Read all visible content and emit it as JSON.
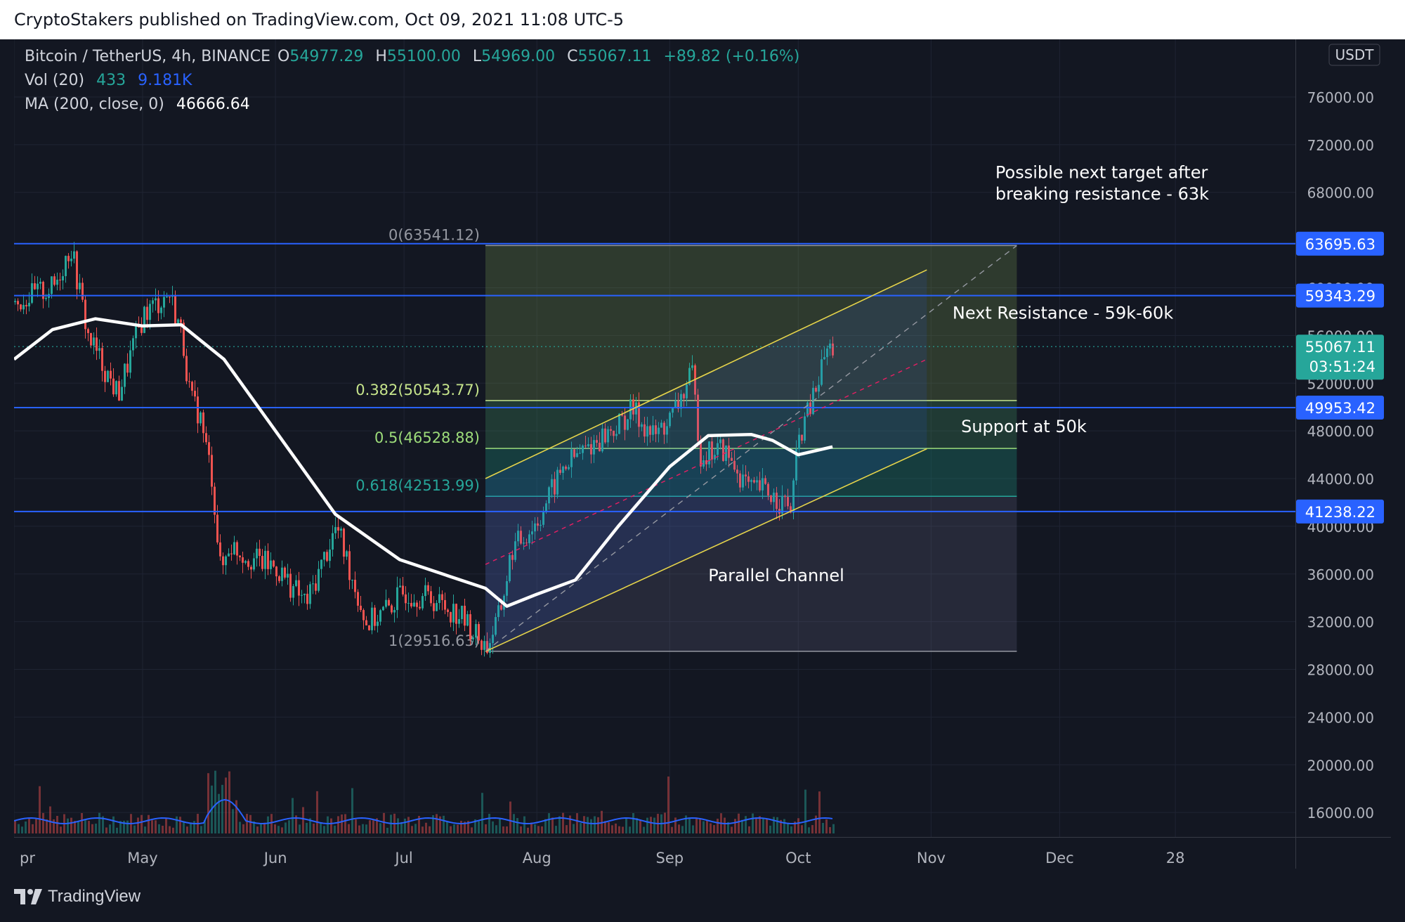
{
  "publish_line": "CryptoStakers published on TradingView.com, Oct 09, 2021 11:08 UTC-5",
  "legend": {
    "symbol": "Bitcoin / TetherUS, 4h, BINANCE",
    "o_label": "O",
    "o": "54977.29",
    "h_label": "H",
    "h": "55100.00",
    "l_label": "L",
    "l": "54969.00",
    "c_label": "C",
    "c": "55067.11",
    "change": "+89.82 (+0.16%)",
    "vol_label": "Vol (20)",
    "vol_1": "433",
    "vol_2": "9.181K",
    "ma_label": "MA (200, close, 0)",
    "ma_value": "46666.64"
  },
  "currency_badge": "USDT",
  "footer_logo": "TradingView",
  "colors": {
    "background": "#131722",
    "up": "#26a69a",
    "down": "#ef5350",
    "hline": "#2962ff",
    "channel": "#e6d44a",
    "ma": "#ffffff",
    "volume_ma": "#2962ff"
  },
  "chart_data": {
    "type": "line",
    "title": "",
    "xlabel": "",
    "ylabel": "",
    "x_tick_labels": [
      "pr",
      "May",
      "Jun",
      "Jul",
      "Aug",
      "Sep",
      "Oct",
      "Nov",
      "Dec",
      "28"
    ],
    "y_tick_labels": [
      "76000.00",
      "72000.00",
      "68000.00",
      "60000.00",
      "56000.00",
      "52000.00",
      "48000.00",
      "44000.00",
      "40000.00",
      "36000.00",
      "32000.00",
      "28000.00",
      "24000.00",
      "20000.00",
      "16000.00"
    ],
    "ylim": [
      14500,
      78000
    ],
    "series": [
      {
        "x": [
          "Apr 01",
          "Apr 10",
          "Apr 14",
          "Apr 18",
          "Apr 25",
          "May 01",
          "May 07",
          "May 10",
          "May 12",
          "May 14",
          "May 17",
          "May 19",
          "May 21",
          "May 25",
          "Jun 01",
          "Jun 08",
          "Jun 15",
          "Jun 22",
          "Jun 26",
          "Jul 01",
          "Jul 07",
          "Jul 14",
          "Jul 20",
          "Jul 23",
          "Jul 26",
          "Aug 01",
          "Aug 07",
          "Aug 14",
          "Aug 20",
          "Aug 23",
          "Aug 28",
          "Sep 01",
          "Sep 06",
          "Sep 08",
          "Sep 13",
          "Sep 20",
          "Sep 22",
          "Sep 25",
          "Sep 29",
          "Oct 01",
          "Oct 05",
          "Oct 07",
          "Oct 09"
        ],
        "values": [
          58800,
          60000,
          63500,
          56000,
          51000,
          57800,
          59500,
          56000,
          50500,
          49500,
          44000,
          36000,
          38500,
          37500,
          36500,
          33500,
          40000,
          31800,
          32800,
          34500,
          34000,
          32500,
          29800,
          32500,
          38000,
          40500,
          45000,
          47000,
          48500,
          49800,
          47500,
          49000,
          52700,
          46000,
          46500,
          42800,
          43200,
          42500,
          41500,
          47500,
          51500,
          54500,
          55067
        ]
      },
      {
        "name": "MA (200, close, 0)",
        "x": [
          "Apr 01",
          "Apr 10",
          "Apr 20",
          "May 01",
          "May 10",
          "May 20",
          "Jun 01",
          "Jun 15",
          "Jun 30",
          "Jul 10",
          "Jul 20",
          "Jul 25",
          "Aug 01",
          "Aug 10",
          "Aug 20",
          "Sep 01",
          "Sep 10",
          "Sep 20",
          "Sep 25",
          "Oct 01",
          "Oct 09"
        ],
        "values": [
          54000,
          56500,
          57400,
          56800,
          56900,
          54000,
          48000,
          41000,
          37200,
          36000,
          34800,
          33300,
          34300,
          35500,
          40000,
          45000,
          47600,
          47700,
          47200,
          46000,
          46667
        ]
      }
    ],
    "volume": {
      "name": "Vol (20)",
      "last_values": [
        "433",
        "9.181K"
      ]
    },
    "horizontal_levels": [
      {
        "label": "63695.63",
        "value": 63695.63
      },
      {
        "label": "59343.29",
        "value": 59343.29
      },
      {
        "label": "49953.42",
        "value": 49953.42
      },
      {
        "label": "41238.22",
        "value": 41238.22
      }
    ],
    "fibonacci": {
      "levels": [
        {
          "label": "0(63541.12)",
          "value": 63541.12
        },
        {
          "label": "0.382(50543.77)",
          "value": 50543.77
        },
        {
          "label": "0.5(46528.88)",
          "value": 46528.88
        },
        {
          "label": "0.618(42513.99)",
          "value": 42513.99
        },
        {
          "label": "1(29516.63)",
          "value": 29516.63
        }
      ],
      "start": "Jul 20",
      "end": "Nov 21"
    },
    "channel": {
      "start": "Jul 20",
      "end": "Oct 31",
      "upper": [
        44000,
        61500
      ],
      "lower": [
        29500,
        46500
      ],
      "median_start": 36800,
      "median_end": 54000
    },
    "current_price": {
      "label": "55067.11",
      "countdown": "03:51:24",
      "value": 55067.11
    },
    "annotations": [
      {
        "text": "Possible next target after",
        "line2": "breaking resistance  - 63k"
      },
      {
        "text": "Next Resistance - 59k-60k"
      },
      {
        "text": "Support at 50k"
      },
      {
        "text": "Parallel Channel"
      }
    ]
  }
}
